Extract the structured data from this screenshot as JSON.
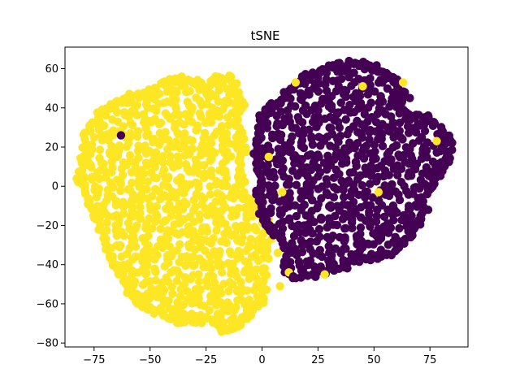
{
  "chart_data": {
    "type": "scatter",
    "title": "tSNE",
    "xlabel": "",
    "ylabel": "",
    "xlim": [
      -88,
      92
    ],
    "ylim": [
      -82,
      71
    ],
    "x_ticks": [
      -75,
      -50,
      -25,
      0,
      25,
      50,
      75
    ],
    "y_ticks": [
      -80,
      -60,
      -40,
      -20,
      0,
      20,
      40,
      60
    ],
    "x_tick_labels": [
      "−75",
      "−50",
      "−25",
      "0",
      "25",
      "50",
      "75"
    ],
    "y_tick_labels": [
      "−80",
      "−60",
      "−40",
      "−20",
      "0",
      "20",
      "40",
      "60"
    ],
    "grid": false,
    "legend": "none",
    "colors": {
      "class_0": "#440154",
      "class_1": "#fde725",
      "axes": "#000000",
      "background": "#ffffff"
    },
    "series": [
      {
        "class": 1,
        "color": "#fde725",
        "cluster_outline": [
          [
            -82,
            4
          ],
          [
            -80,
            18
          ],
          [
            -78,
            29
          ],
          [
            -72,
            38
          ],
          [
            -66,
            42
          ],
          [
            -60,
            46
          ],
          [
            -52,
            47
          ],
          [
            -45,
            53
          ],
          [
            -37,
            55
          ],
          [
            -30,
            53
          ],
          [
            -25,
            50
          ],
          [
            -20,
            56
          ],
          [
            -13,
            55
          ],
          [
            -9,
            42
          ],
          [
            -12,
            35
          ],
          [
            -8,
            22
          ],
          [
            -9,
            9
          ],
          [
            -8,
            -5
          ],
          [
            -4,
            -9
          ],
          [
            2,
            -16
          ],
          [
            4,
            -26
          ],
          [
            2,
            -38
          ],
          [
            1,
            -55
          ],
          [
            -1,
            -60
          ],
          [
            -4,
            -62
          ],
          [
            -7,
            -66
          ],
          [
            -12,
            -72
          ],
          [
            -17,
            -74
          ],
          [
            -22,
            -68
          ],
          [
            -30,
            -69
          ],
          [
            -38,
            -69
          ],
          [
            -44,
            -66
          ],
          [
            -50,
            -62
          ],
          [
            -56,
            -60
          ],
          [
            -60,
            -52
          ],
          [
            -63,
            -45
          ],
          [
            -68,
            -38
          ],
          [
            -70,
            -30
          ],
          [
            -73,
            -18
          ],
          [
            -76,
            -12
          ],
          [
            -78,
            -5
          ]
        ],
        "outliers": [
          [
            9,
            -3
          ],
          [
            28,
            -45
          ],
          [
            45,
            51
          ],
          [
            63,
            53
          ],
          [
            52,
            -3
          ],
          [
            78,
            23
          ],
          [
            3,
            15
          ],
          [
            -61,
            25
          ],
          [
            7,
            -34
          ],
          [
            12,
            -44
          ],
          [
            8,
            -51
          ],
          [
            15,
            53
          ],
          [
            -3,
            -22
          ]
        ]
      },
      {
        "class": 0,
        "color": "#440154",
        "cluster_outline": [
          [
            -2,
            26
          ],
          [
            0,
            37
          ],
          [
            8,
            44
          ],
          [
            14,
            51
          ],
          [
            20,
            56
          ],
          [
            27,
            59
          ],
          [
            33,
            62
          ],
          [
            40,
            63
          ],
          [
            47,
            62
          ],
          [
            53,
            60
          ],
          [
            59,
            55
          ],
          [
            63,
            48
          ],
          [
            63,
            39
          ],
          [
            67,
            36
          ],
          [
            74,
            35
          ],
          [
            80,
            29
          ],
          [
            84,
            23
          ],
          [
            83,
            13
          ],
          [
            79,
            7
          ],
          [
            76,
            1
          ],
          [
            72,
            -5
          ],
          [
            73,
            -12
          ],
          [
            69,
            -22
          ],
          [
            64,
            -29
          ],
          [
            58,
            -34
          ],
          [
            50,
            -37
          ],
          [
            42,
            -38
          ],
          [
            35,
            -42
          ],
          [
            24,
            -45
          ],
          [
            16,
            -47
          ],
          [
            10,
            -43
          ],
          [
            11,
            -36
          ],
          [
            8,
            -26
          ],
          [
            3,
            -22
          ],
          [
            0,
            -13
          ],
          [
            -2,
            -2
          ],
          [
            -1,
            8
          ],
          [
            -3,
            16
          ]
        ],
        "outliers": [
          [
            -63,
            26
          ],
          [
            26,
            59
          ],
          [
            38,
            61
          ],
          [
            45,
            63
          ],
          [
            14,
            -46
          ],
          [
            66,
            45
          ]
        ]
      }
    ]
  }
}
